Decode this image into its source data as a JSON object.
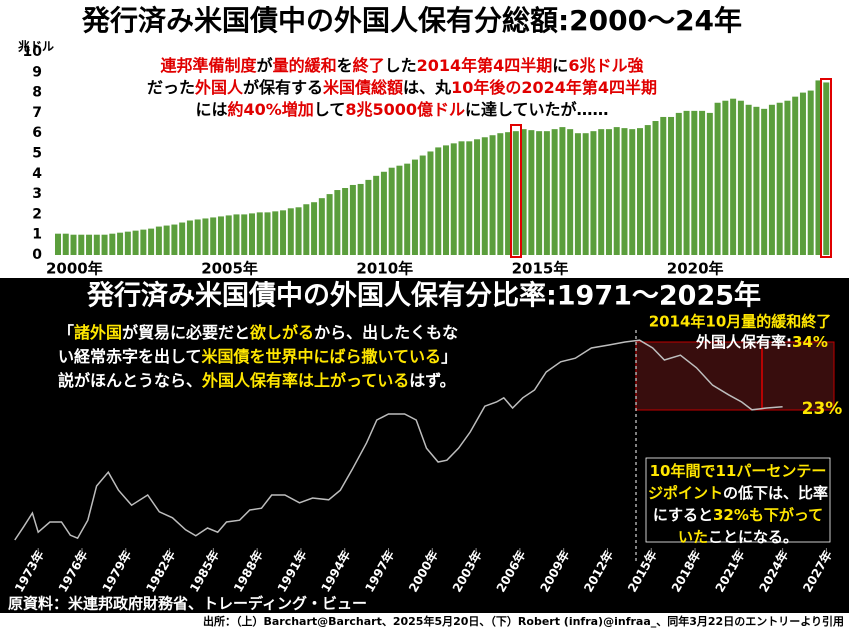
{
  "chart_data": [
    {
      "type": "bar",
      "title": "発行済み米国債中の外国人保有分総額:2000～24年",
      "y_label": "兆ドル",
      "color": "#5b9e3c",
      "categories": [
        "2000年",
        null,
        null,
        null,
        null,
        null,
        null,
        null,
        null,
        null,
        null,
        null,
        null,
        null,
        null,
        null,
        null,
        null,
        null,
        null,
        "2005年",
        null,
        null,
        null,
        null,
        null,
        null,
        null,
        null,
        null,
        null,
        null,
        null,
        null,
        null,
        null,
        null,
        null,
        null,
        null,
        "2010年",
        null,
        null,
        null,
        null,
        null,
        null,
        null,
        null,
        null,
        null,
        null,
        null,
        null,
        null,
        null,
        null,
        null,
        null,
        null,
        "2015年",
        null,
        null,
        null,
        null,
        null,
        null,
        null,
        null,
        null,
        null,
        null,
        null,
        null,
        null,
        null,
        null,
        null,
        null,
        null,
        "2020年",
        null,
        null,
        null,
        null,
        null,
        null,
        null,
        null,
        null,
        null,
        null,
        null,
        null,
        null,
        null,
        null,
        null,
        null,
        null
      ],
      "values": [
        1.05,
        1.05,
        1.0,
        1.0,
        1.0,
        1.0,
        1.0,
        1.05,
        1.1,
        1.15,
        1.2,
        1.25,
        1.3,
        1.4,
        1.45,
        1.5,
        1.6,
        1.7,
        1.75,
        1.8,
        1.85,
        1.9,
        1.95,
        2.0,
        2.0,
        2.05,
        2.1,
        2.1,
        2.15,
        2.2,
        2.3,
        2.35,
        2.5,
        2.6,
        2.8,
        3.0,
        3.2,
        3.3,
        3.45,
        3.5,
        3.7,
        3.9,
        4.1,
        4.3,
        4.4,
        4.5,
        4.7,
        4.9,
        5.1,
        5.3,
        5.4,
        5.5,
        5.6,
        5.6,
        5.7,
        5.8,
        5.9,
        6.0,
        6.05,
        6.1,
        6.2,
        6.15,
        6.1,
        6.1,
        6.2,
        6.3,
        6.2,
        6.0,
        6.0,
        6.1,
        6.2,
        6.2,
        6.3,
        6.25,
        6.2,
        6.25,
        6.4,
        6.6,
        6.8,
        6.8,
        7.0,
        7.1,
        7.1,
        7.1,
        7.0,
        7.5,
        7.6,
        7.7,
        7.6,
        7.4,
        7.3,
        7.2,
        7.4,
        7.5,
        7.6,
        7.8,
        8.0,
        8.1,
        8.6,
        8.5
      ],
      "ylim": [
        0,
        10
      ],
      "yticks": [
        0,
        1,
        2,
        3,
        4,
        5,
        6,
        7,
        8,
        9,
        10
      ],
      "annotation": [
        [
          {
            "text": "連邦準備制度",
            "color": "#e00000"
          },
          {
            "text": "が",
            "color": "#000000"
          },
          {
            "text": "量的緩和",
            "color": "#e00000"
          },
          {
            "text": "を",
            "color": "#000000"
          },
          {
            "text": "終了",
            "color": "#e00000"
          },
          {
            "text": "した",
            "color": "#000000"
          },
          {
            "text": "2014年第4四半期",
            "color": "#e00000"
          },
          {
            "text": "に",
            "color": "#000000"
          },
          {
            "text": "6兆ドル強",
            "color": "#e00000"
          }
        ],
        [
          {
            "text": "だった",
            "color": "#000000"
          },
          {
            "text": "外国人",
            "color": "#e00000"
          },
          {
            "text": "が保有する",
            "color": "#000000"
          },
          {
            "text": "米国債総額",
            "color": "#e00000"
          },
          {
            "text": "は、丸",
            "color": "#000000"
          },
          {
            "text": "10年後の2024年第4四半期",
            "color": "#e00000"
          }
        ],
        [
          {
            "text": "には",
            "color": "#000000"
          },
          {
            "text": "約40%増加",
            "color": "#e00000"
          },
          {
            "text": "して",
            "color": "#000000"
          },
          {
            "text": "8兆5000億ドル",
            "color": "#e00000"
          },
          {
            "text": "に達していたが……",
            "color": "#000000"
          }
        ]
      ]
    },
    {
      "type": "line",
      "title": "発行済み米国債中の外国人保有分比率:1971～2025年",
      "color": "#bdbdbd",
      "x": [
        1971.4,
        1972,
        1972.6,
        1973,
        1973.8,
        1974.6,
        1975.2,
        1975.7,
        1976.4,
        1977,
        1977.8,
        1978.5,
        1979.4,
        1980.5,
        1981.3,
        1982.2,
        1983.1,
        1983.8,
        1984.6,
        1985.3,
        1985.9,
        1986.8,
        1987.5,
        1988.3,
        1989,
        1989.9,
        1990.9,
        1991.8,
        1992.9,
        1993.7,
        1994.5,
        1995.5,
        1996.2,
        1997,
        1998.1,
        1998.9,
        1999.6,
        2000.4,
        2001,
        2001.8,
        2002.6,
        2003.6,
        2004.4,
        2004.9,
        2005.5,
        2006.2,
        2007,
        2007.8,
        2008.8,
        2009.8,
        2010.9,
        2012.1,
        2013.2,
        2014.2,
        2015.1,
        2015.9,
        2017,
        2018.1,
        2019.2,
        2020.3,
        2021.2,
        2021.9,
        2022.9,
        2024
      ],
      "values": [
        1,
        3.2,
        5.5,
        2.3,
        4,
        4,
        1.8,
        1.3,
        4.3,
        10,
        12.3,
        9.3,
        6.8,
        8.5,
        5.7,
        4.7,
        2.7,
        1.7,
        3,
        2.3,
        4,
        4.3,
        6,
        6.3,
        8.5,
        8.5,
        7.2,
        8,
        7.7,
        9.3,
        12.7,
        17.2,
        21,
        22,
        22,
        21,
        16.3,
        14,
        14.3,
        16.3,
        19,
        23.3,
        24,
        24.7,
        23,
        24.7,
        26,
        29,
        30.7,
        31.3,
        33,
        33.5,
        34,
        34.3,
        33,
        31,
        31.8,
        29.7,
        26.8,
        25.2,
        24,
        22.7,
        23,
        23.2
      ],
      "xlim": [
        1971,
        2028
      ],
      "ylim": [
        0,
        36
      ],
      "xticks": [
        {
          "value": 1973,
          "label": "1973年"
        },
        {
          "value": 1976,
          "label": "1976年"
        },
        {
          "value": 1979,
          "label": "1979年"
        },
        {
          "value": 1982,
          "label": "1982年"
        },
        {
          "value": 1985,
          "label": "1985年"
        },
        {
          "value": 1988,
          "label": "1988年"
        },
        {
          "value": 1991,
          "label": "1991年"
        },
        {
          "value": 1994,
          "label": "1994年"
        },
        {
          "value": 1997,
          "label": "1997年"
        },
        {
          "value": 2000,
          "label": "2000年"
        },
        {
          "value": 2003,
          "label": "2003年"
        },
        {
          "value": 2006,
          "label": "2006年"
        },
        {
          "value": 2009,
          "label": "2009年"
        },
        {
          "value": 2012,
          "label": "2012年"
        },
        {
          "value": 2015,
          "label": "2015年"
        },
        {
          "value": 2018,
          "label": "2018年"
        },
        {
          "value": 2021,
          "label": "2021年"
        },
        {
          "value": 2024,
          "label": "2024年"
        },
        {
          "value": 2027,
          "label": "2027年"
        }
      ],
      "quote": [
        [
          {
            "text": "「",
            "color": "#ffffff"
          },
          {
            "text": "諸外国",
            "color": "#ffe600"
          },
          {
            "text": "が貿易に必要だと",
            "color": "#ffffff"
          },
          {
            "text": "欲しがる",
            "color": "#ffe600"
          },
          {
            "text": "から、出したくもな",
            "color": "#ffffff"
          }
        ],
        [
          {
            "text": "い経常赤字を出して",
            "color": "#ffffff"
          },
          {
            "text": "米国債を世界中にばら撒いている",
            "color": "#ffe600"
          },
          {
            "text": "」",
            "color": "#ffffff"
          }
        ],
        [
          {
            "text": "説がほんとうなら、",
            "color": "#ffffff"
          },
          {
            "text": "外国人保有率は上がっている",
            "color": "#ffe600"
          },
          {
            "text": "はず。",
            "color": "#ffffff"
          }
        ]
      ],
      "qe_end_label": "2014年10月量的緩和終了",
      "rate_label": [
        {
          "text": "外国人保有率:",
          "color": "#ffffff"
        },
        {
          "text": "34%",
          "color": "#ffe600"
        }
      ],
      "end_label": "23%",
      "conclusion": [
        [
          {
            "text": "10年間で11パーセンテー",
            "color": "#ffe600"
          }
        ],
        [
          {
            "text": "ジポイント",
            "color": "#ffe600"
          },
          {
            "text": "の低下は、比率",
            "color": "#ffffff"
          }
        ],
        [
          {
            "text": "にすると",
            "color": "#ffffff"
          },
          {
            "text": "32%も下がって",
            "color": "#ffe600"
          }
        ],
        [
          {
            "text": "いた",
            "color": "#ffe600"
          },
          {
            "text": "ことになる。",
            "color": "#ffffff"
          }
        ]
      ]
    }
  ],
  "sources": {
    "original": "原資料：米連邦政府財務省、トレーディング・ビュー",
    "citation": "出所：（上）Barchart@Barchart、2025年5月20日、（下）Robert (infra)@infraa_、同年3月22日のエントリーより引用"
  }
}
